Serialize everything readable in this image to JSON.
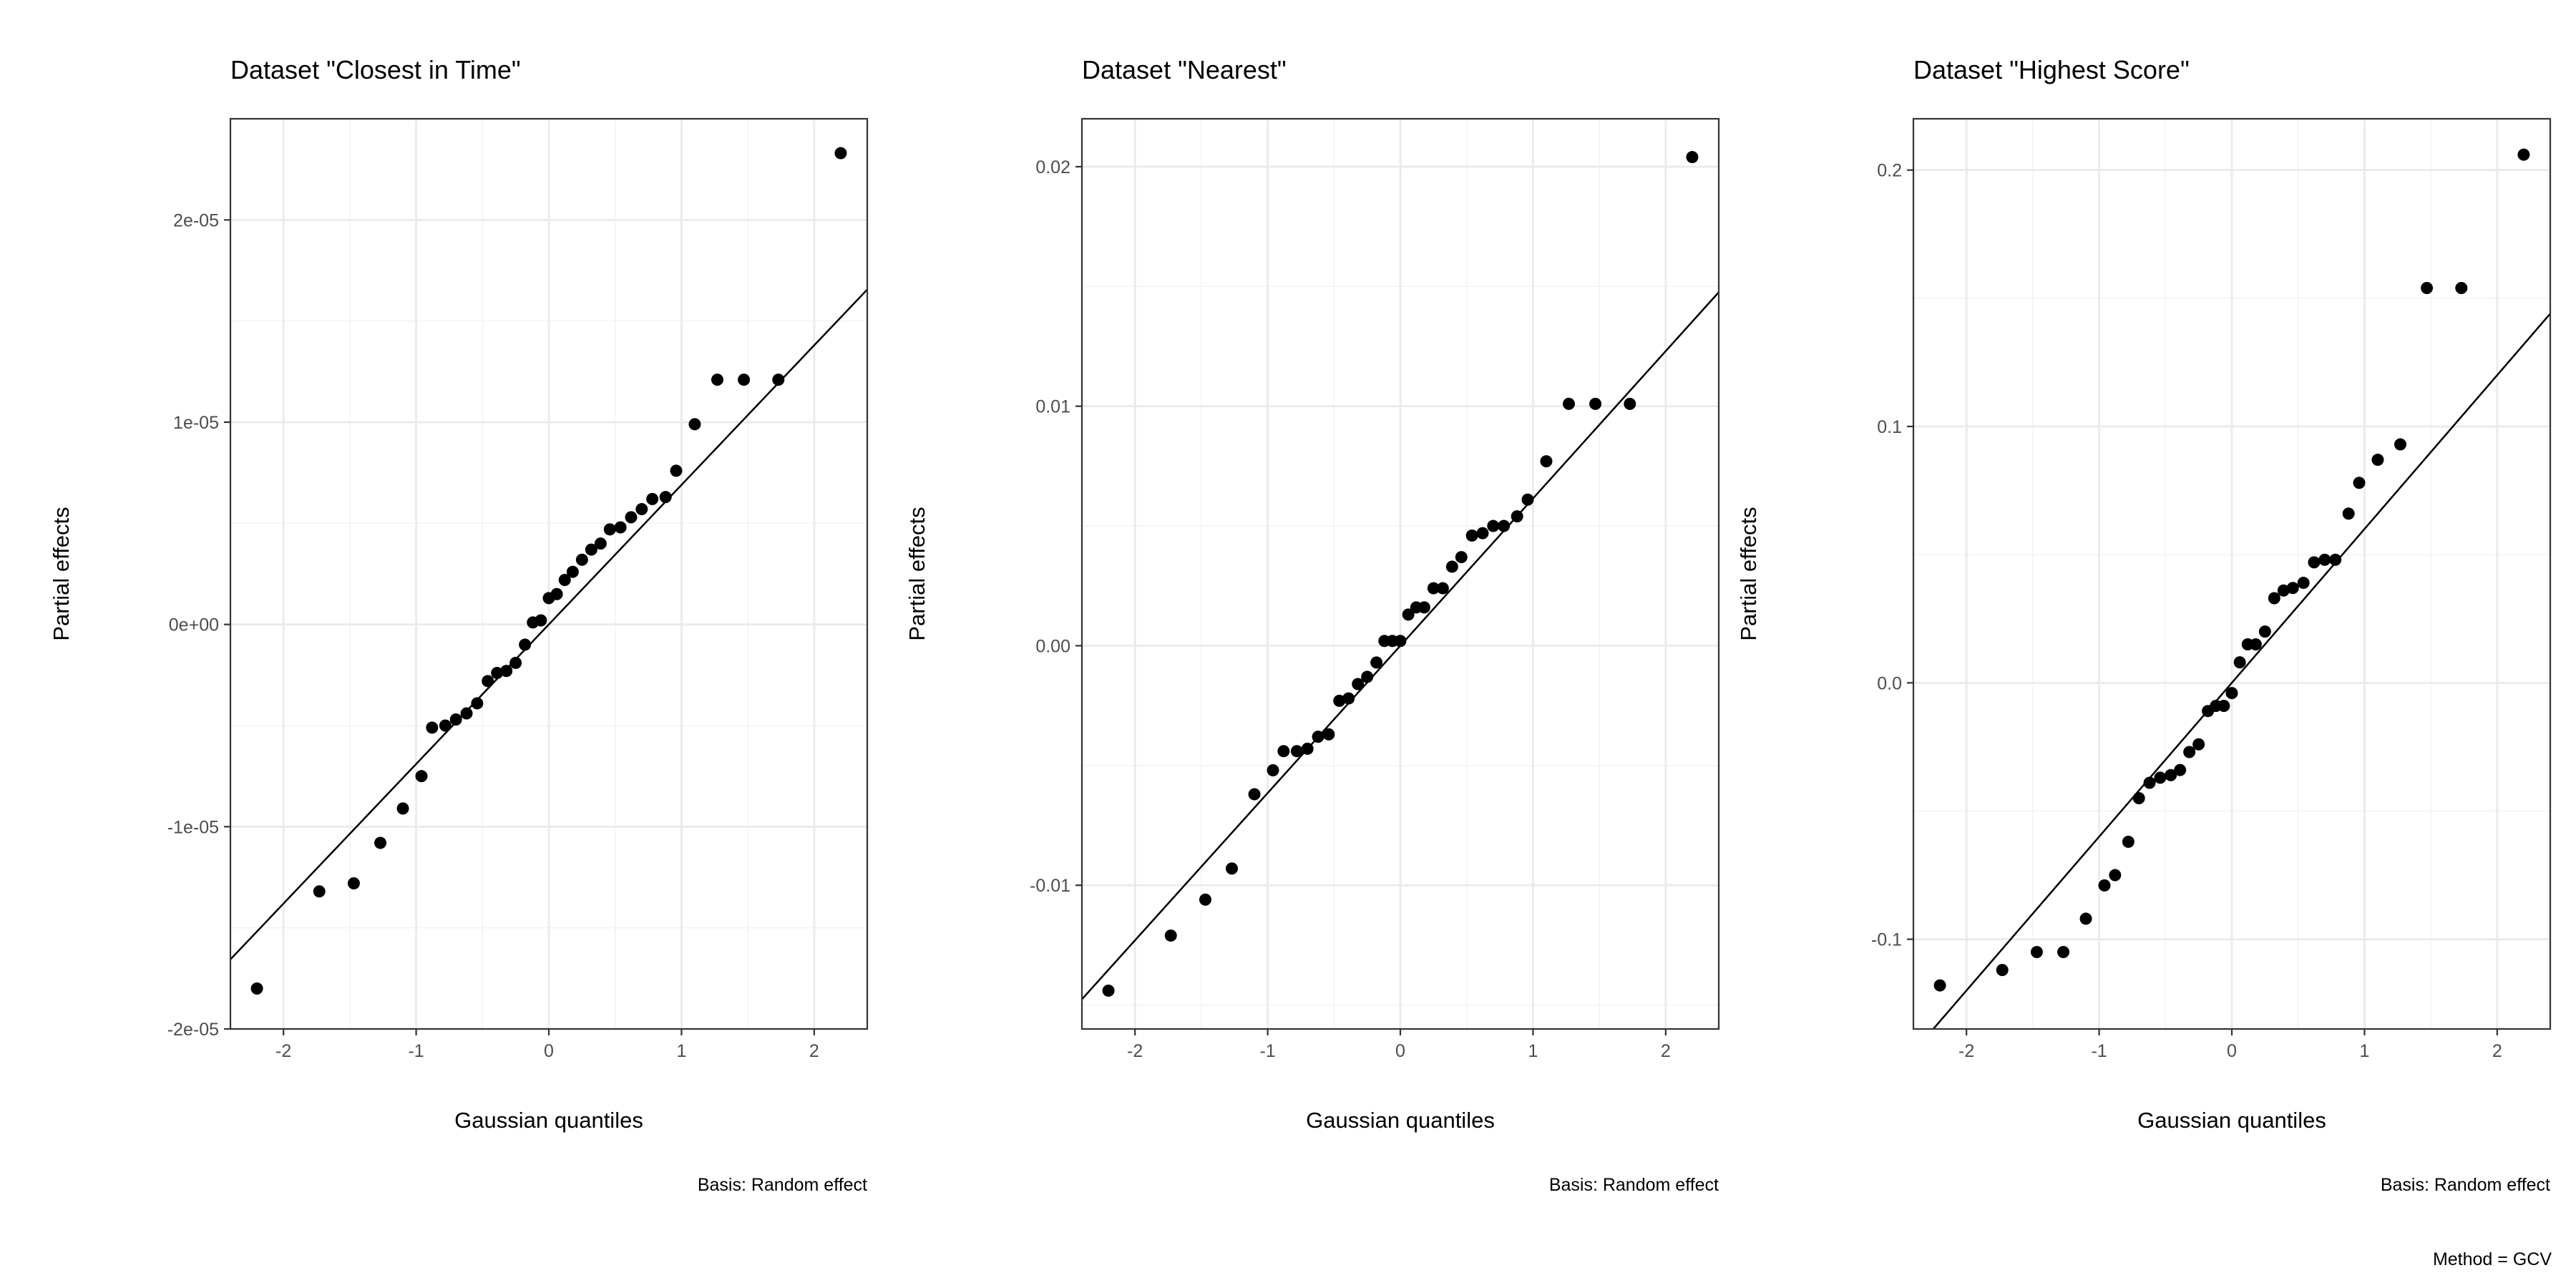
{
  "chart_data": [
    {
      "type": "scatter",
      "title": "Dataset \"Closest in Time\"",
      "xlabel": "Gaussian quantiles",
      "ylabel": "Partial effects",
      "caption": "Basis: Random effect",
      "xlim": [
        -2.4,
        2.4
      ],
      "ylim": [
        -2e-05,
        2.5e-05
      ],
      "x_ticks": [
        -2,
        -1,
        0,
        1,
        2
      ],
      "x_tick_labels": [
        "-2",
        "-1",
        "0",
        "1",
        "2"
      ],
      "y_ticks": [
        -2e-05,
        -1e-05,
        0,
        1e-05,
        2e-05
      ],
      "y_tick_labels": [
        "-2e-05",
        "-1e-05",
        "0e+00",
        "1e-05",
        "2e-05"
      ],
      "reference_line": {
        "intercept": 0,
        "slope": 6.9e-06
      },
      "grid": true,
      "points": {
        "x": [
          -2.2,
          -1.73,
          -1.47,
          -1.27,
          -1.1,
          -0.96,
          -0.88,
          -0.78,
          -0.7,
          -0.62,
          -0.54,
          -0.46,
          -0.39,
          -0.32,
          -0.25,
          -0.18,
          -0.12,
          -0.06,
          0.0,
          0.06,
          0.12,
          0.18,
          0.25,
          0.32,
          0.39,
          0.46,
          0.54,
          0.62,
          0.7,
          0.78,
          0.88,
          0.96,
          1.1,
          1.27,
          1.47,
          1.73,
          2.2
        ],
        "y": [
          -1.8e-05,
          -1.32e-05,
          -1.28e-05,
          -1.08e-05,
          -9.1e-06,
          -7.5e-06,
          -5.1e-06,
          -5e-06,
          -4.7e-06,
          -4.4e-06,
          -3.9e-06,
          -2.8e-06,
          -2.4e-06,
          -2.3e-06,
          -1.9e-06,
          -1e-06,
          1e-07,
          2e-07,
          1.3e-06,
          1.5e-06,
          2.2e-06,
          2.6e-06,
          3.2e-06,
          3.7e-06,
          4e-06,
          4.7e-06,
          4.8e-06,
          5.3e-06,
          5.7e-06,
          6.2e-06,
          6.3e-06,
          7.6e-06,
          9.9e-06,
          1.21e-05,
          1.21e-05,
          1.21e-05,
          2.33e-05
        ]
      }
    },
    {
      "type": "scatter",
      "title": "Dataset \"Nearest\"",
      "xlabel": "Gaussian quantiles",
      "ylabel": "Partial effects",
      "caption": "Basis: Random effect",
      "xlim": [
        -2.4,
        2.4
      ],
      "ylim": [
        -0.016,
        0.022
      ],
      "x_ticks": [
        -2,
        -1,
        0,
        1,
        2
      ],
      "x_tick_labels": [
        "-2",
        "-1",
        "0",
        "1",
        "2"
      ],
      "y_ticks": [
        -0.01,
        0,
        0.01,
        0.02
      ],
      "y_tick_labels": [
        "-0.01",
        "0.00",
        "0.01",
        "0.02"
      ],
      "reference_line": {
        "intercept": 0,
        "slope": 0.00615
      },
      "grid": true,
      "points": {
        "x": [
          -2.2,
          -1.73,
          -1.47,
          -1.27,
          -1.1,
          -0.96,
          -0.88,
          -0.78,
          -0.7,
          -0.62,
          -0.54,
          -0.46,
          -0.39,
          -0.32,
          -0.25,
          -0.18,
          -0.12,
          -0.06,
          0.0,
          0.06,
          0.12,
          0.18,
          0.25,
          0.32,
          0.39,
          0.46,
          0.54,
          0.62,
          0.7,
          0.78,
          0.88,
          0.96,
          1.1,
          1.27,
          1.47,
          1.73,
          2.2
        ],
        "y": [
          -0.0144,
          -0.0121,
          -0.0106,
          -0.0093,
          -0.0062,
          -0.0052,
          -0.0044,
          -0.0044,
          -0.0043,
          -0.0038,
          -0.0037,
          -0.0023,
          -0.0022,
          -0.0016,
          -0.0013,
          -0.0007,
          0.0002,
          0.0002,
          0.0002,
          0.0013,
          0.0016,
          0.0016,
          0.0024,
          0.0024,
          0.0033,
          0.0037,
          0.0046,
          0.0047,
          0.005,
          0.005,
          0.0054,
          0.0061,
          0.0077,
          0.0101,
          0.0101,
          0.0101,
          0.0204
        ]
      }
    },
    {
      "type": "scatter",
      "title": "Dataset \"Highest Score\"",
      "xlabel": "Gaussian quantiles",
      "ylabel": "Partial effects",
      "caption": "Basis: Random effect",
      "xlim": [
        -2.4,
        2.4
      ],
      "ylim": [
        -0.135,
        0.22
      ],
      "x_ticks": [
        -2,
        -1,
        0,
        1,
        2
      ],
      "x_tick_labels": [
        "-2",
        "-1",
        "0",
        "1",
        "2"
      ],
      "y_ticks": [
        -0.1,
        0,
        0.1,
        0.2
      ],
      "y_tick_labels": [
        "-0.1",
        "0.0",
        "0.1",
        "0.2"
      ],
      "reference_line": {
        "intercept": 0,
        "slope": 0.06
      },
      "grid": true,
      "points": {
        "x": [
          -2.2,
          -1.73,
          -1.47,
          -1.27,
          -1.1,
          -0.96,
          -0.88,
          -0.78,
          -0.7,
          -0.62,
          -0.54,
          -0.46,
          -0.39,
          -0.32,
          -0.25,
          -0.18,
          -0.12,
          -0.06,
          0.0,
          0.06,
          0.12,
          0.18,
          0.25,
          0.32,
          0.39,
          0.46,
          0.54,
          0.62,
          0.7,
          0.78,
          0.88,
          0.96,
          1.1,
          1.27,
          1.47,
          1.73,
          2.2
        ],
        "y": [
          -0.118,
          -0.112,
          -0.105,
          -0.105,
          -0.092,
          -0.079,
          -0.075,
          -0.062,
          -0.045,
          -0.039,
          -0.037,
          -0.036,
          -0.034,
          -0.027,
          -0.024,
          -0.011,
          -0.009,
          -0.009,
          -0.004,
          0.008,
          0.015,
          0.015,
          0.02,
          0.033,
          0.036,
          0.037,
          0.039,
          0.047,
          0.048,
          0.048,
          0.066,
          0.078,
          0.087,
          0.093,
          0.154,
          0.154,
          0.206
        ]
      }
    }
  ],
  "footer": {
    "method_label": "Method = GCV"
  }
}
